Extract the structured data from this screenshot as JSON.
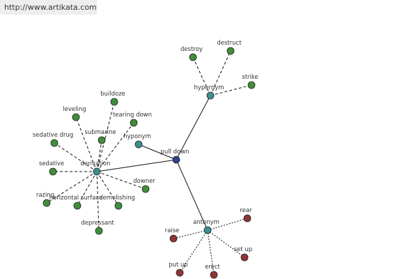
{
  "header": {
    "url": "http://www.artikata.com"
  },
  "nodes": [
    {
      "label": "pull down"
    },
    {
      "label": "hypernym"
    },
    {
      "label": "hyponym"
    },
    {
      "label": "derivation"
    },
    {
      "label": "antonym"
    },
    {
      "label": "destroy"
    },
    {
      "label": "destruct"
    },
    {
      "label": "strike"
    },
    {
      "label": "buildoze"
    },
    {
      "label": "tearing down"
    },
    {
      "label": "submarine"
    },
    {
      "label": "leveling"
    },
    {
      "label": "sedative drug"
    },
    {
      "label": "sedative"
    },
    {
      "label": "razing"
    },
    {
      "label": "horizontal surface"
    },
    {
      "label": "demolishing"
    },
    {
      "label": "downer"
    },
    {
      "label": "depressant"
    },
    {
      "label": "rear"
    },
    {
      "label": "raise"
    },
    {
      "label": "set up"
    },
    {
      "label": "put up"
    },
    {
      "label": "erect"
    }
  ]
}
